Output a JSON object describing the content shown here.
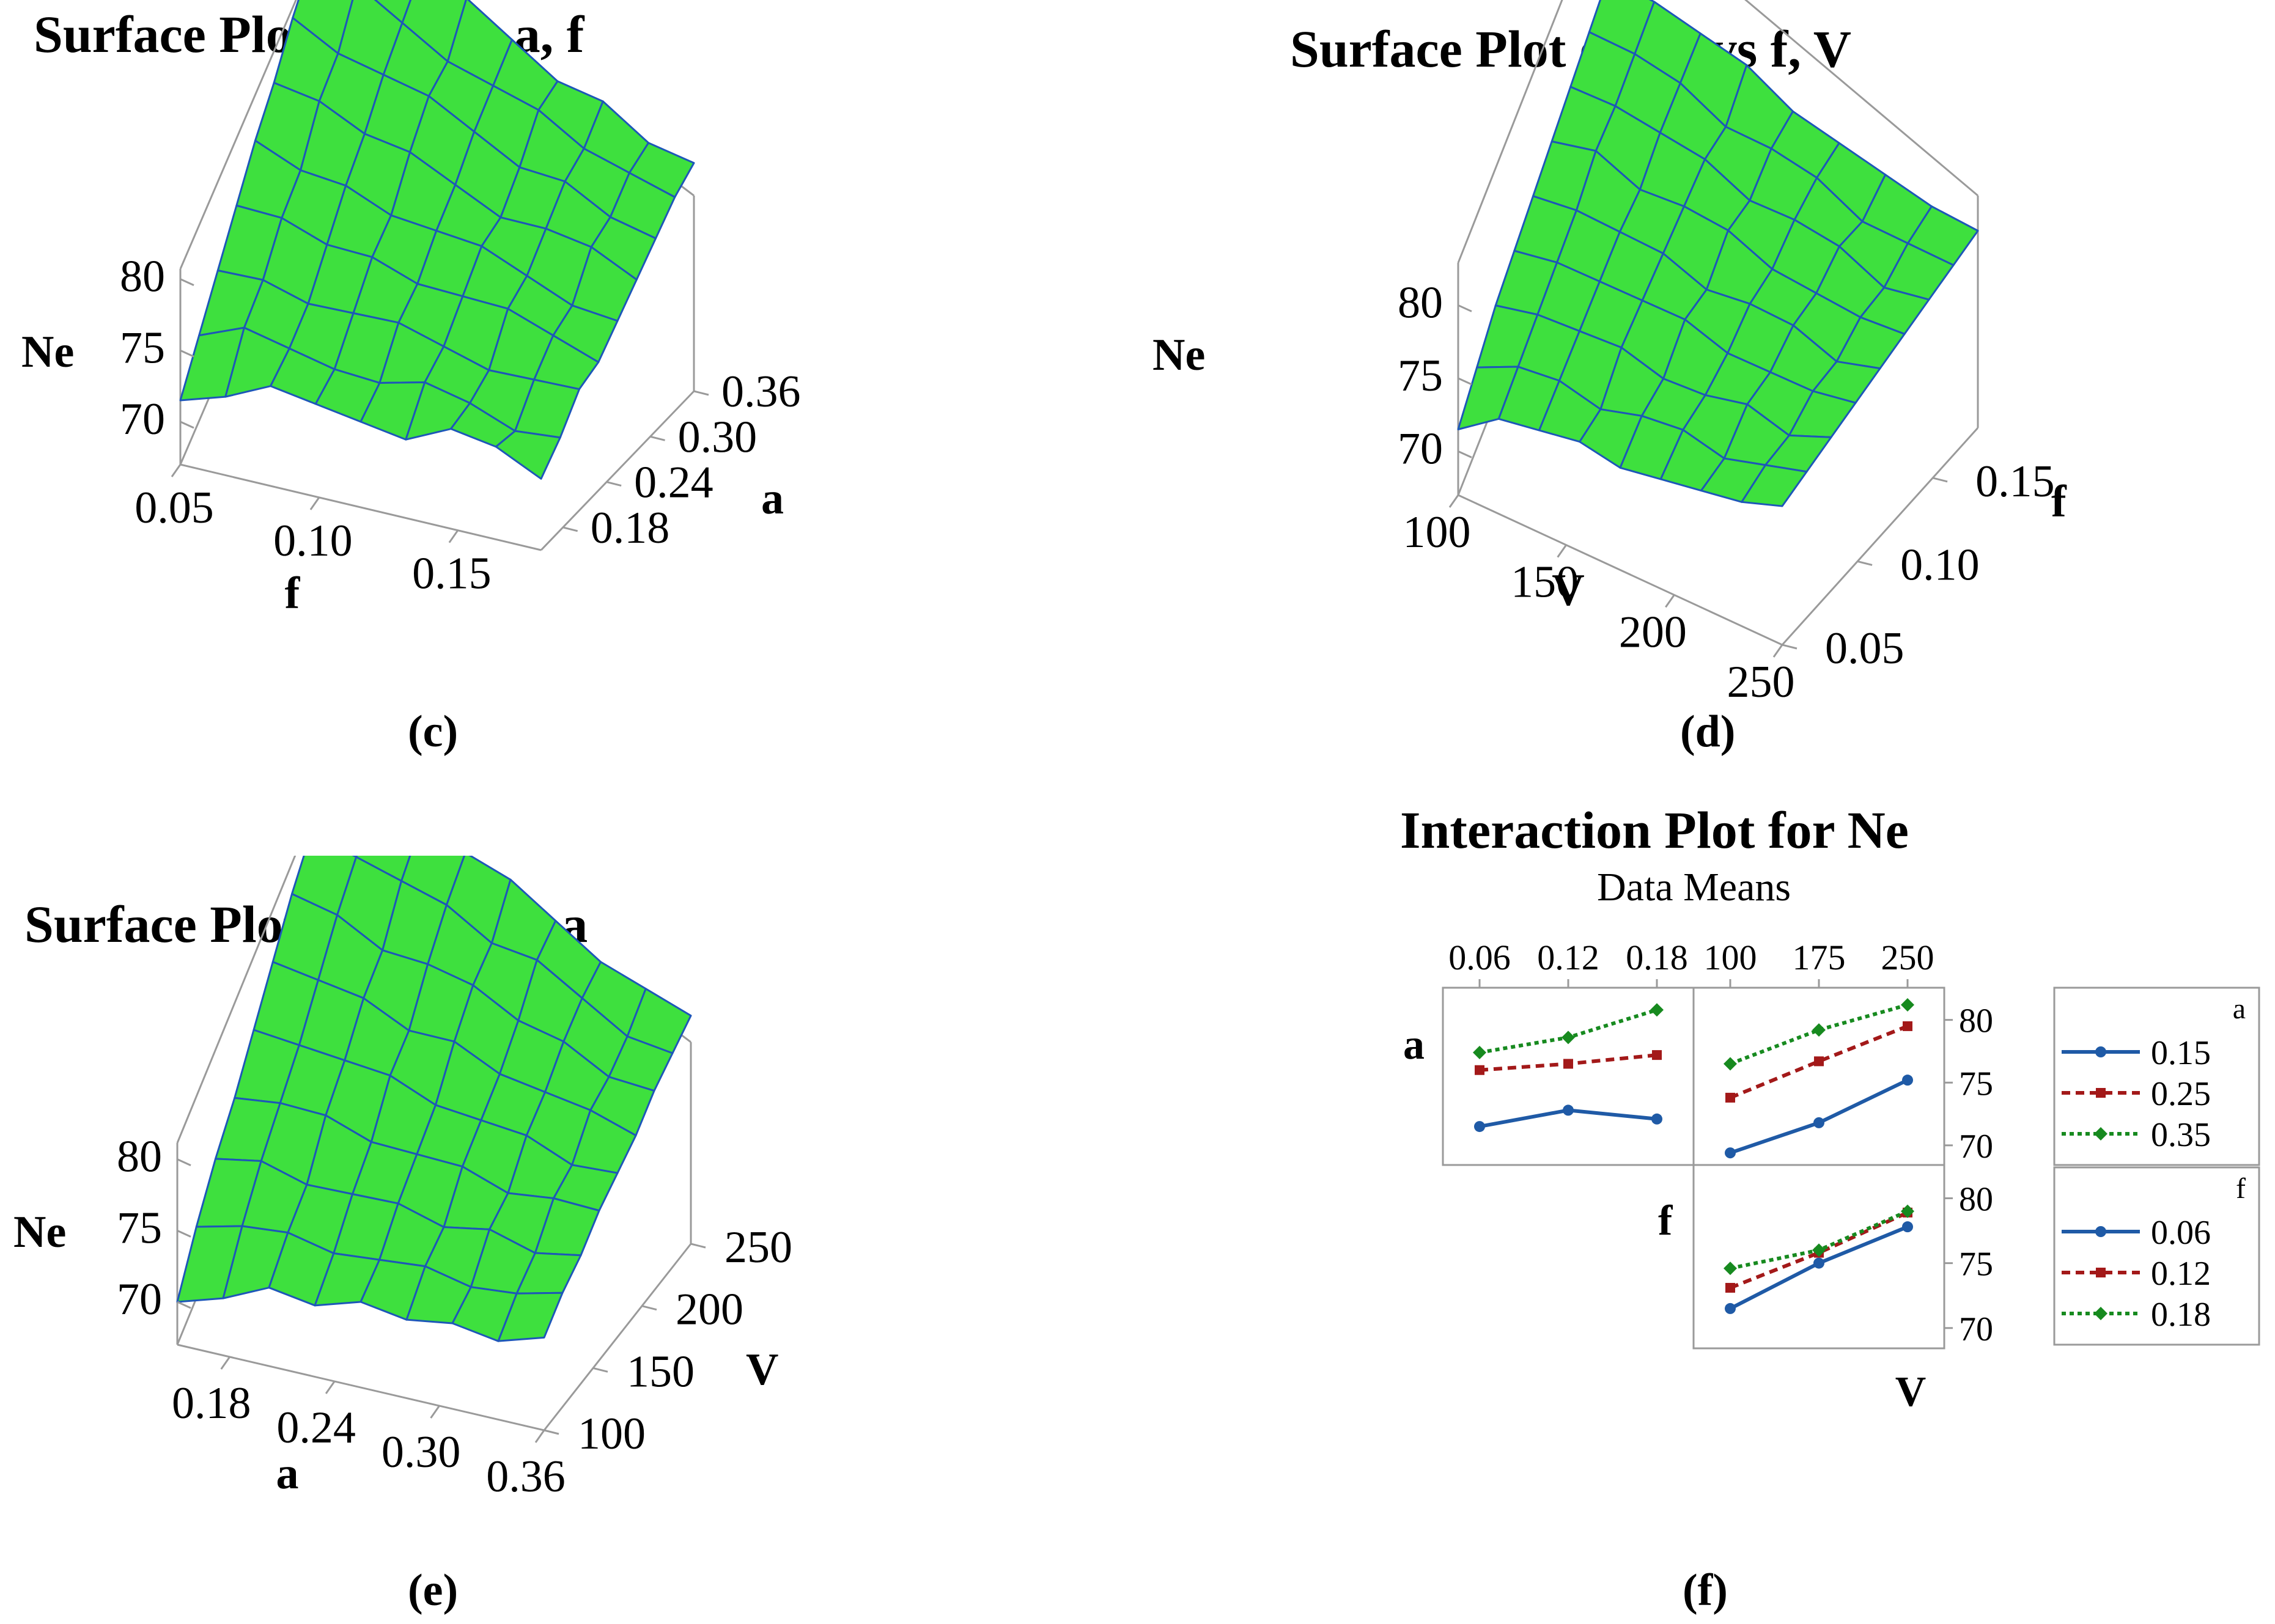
{
  "panels": [
    {
      "id": "c",
      "caption": "(c)"
    },
    {
      "id": "d",
      "caption": "(d)"
    },
    {
      "id": "e",
      "caption": "(e)"
    },
    {
      "id": "f",
      "caption": "(f)"
    }
  ],
  "chart_data": [
    {
      "id": "c",
      "type": "surface",
      "title": "Surface Plot of Ne vs a, f",
      "zlabel": "Ne",
      "xlabel": "f",
      "ylabel": "a",
      "z_ticks": [
        "70",
        "75",
        "80"
      ],
      "x_ticks": [
        "0.05",
        "0.10",
        "0.15"
      ],
      "y_ticks": [
        "0.18",
        "0.24",
        "0.30",
        "0.36"
      ],
      "zlim": [
        67,
        85
      ],
      "xlim": [
        0.05,
        0.18
      ],
      "ylim": [
        0.15,
        0.36
      ],
      "z_grid": [
        [
          71.5,
          72.5,
          74.0,
          73.5,
          73.0,
          72.5,
          74.0,
          73.5,
          72.0
        ],
        [
          73.0,
          74.5,
          74.0,
          73.5,
          73.5,
          74.5,
          74.0,
          73.0,
          73.5
        ],
        [
          74.5,
          75.0,
          74.5,
          75.0,
          75.5,
          75.0,
          74.5,
          75.0,
          75.5
        ],
        [
          76.0,
          76.5,
          76.0,
          76.5,
          76.0,
          76.5,
          77.0,
          76.5,
          76.0
        ],
        [
          77.5,
          77.0,
          77.5,
          77.0,
          77.5,
          78.0,
          77.5,
          77.0,
          77.5
        ],
        [
          78.5,
          79.0,
          78.5,
          79.0,
          78.5,
          78.0,
          79.0,
          79.5,
          79.0
        ],
        [
          80.0,
          79.5,
          80.0,
          80.5,
          80.0,
          79.5,
          80.5,
          80.0,
          80.5
        ],
        [
          81.0,
          81.5,
          81.0,
          80.5,
          81.0,
          81.5,
          81.0,
          81.5,
          82.0
        ],
        [
          82.0,
          82.5,
          82.0,
          82.5,
          82.0,
          81.5,
          82.5,
          82.0,
          83.0
        ]
      ]
    },
    {
      "id": "d",
      "type": "surface",
      "title": "Surface Plot of Ne vs f, V",
      "zlabel": "Ne",
      "xlabel": "V",
      "ylabel": "f",
      "z_ticks": [
        "70",
        "75",
        "80"
      ],
      "x_ticks": [
        "100",
        "150",
        "200",
        "250"
      ],
      "y_ticks": [
        "0.05",
        "0.10",
        "0.15"
      ],
      "zlim": [
        67,
        85
      ],
      "xlim": [
        100,
        250
      ],
      "ylim": [
        0.05,
        0.18
      ],
      "z_grid": [
        [
          71.5,
          73.5,
          74.0,
          74.5,
          74.0,
          74.5,
          75.0,
          75.5,
          76.5
        ],
        [
          72.5,
          74.0,
          74.5,
          74.0,
          75.0,
          75.5,
          75.0,
          76.0,
          77.0
        ],
        [
          73.5,
          74.5,
          75.0,
          75.5,
          75.0,
          75.5,
          76.5,
          76.0,
          77.5
        ],
        [
          74.0,
          75.0,
          75.5,
          76.0,
          76.5,
          76.0,
          76.5,
          77.0,
          78.0
        ],
        [
          74.5,
          75.5,
          76.0,
          76.5,
          76.0,
          77.0,
          77.5,
          77.0,
          78.5
        ],
        [
          75.0,
          76.5,
          76.0,
          77.0,
          77.5,
          77.0,
          77.5,
          78.0,
          79.0
        ],
        [
          75.5,
          76.5,
          77.0,
          77.5,
          77.0,
          78.0,
          78.5,
          78.0,
          79.5
        ],
        [
          76.0,
          77.0,
          77.5,
          77.0,
          78.0,
          78.5,
          78.0,
          79.0,
          80.0
        ],
        [
          76.5,
          77.5,
          78.0,
          78.5,
          78.0,
          78.5,
          79.0,
          79.5,
          80.5
        ]
      ]
    },
    {
      "id": "e",
      "type": "surface",
      "title": "Surface Plot of Ne vs V, a",
      "zlabel": "Ne",
      "xlabel": "a",
      "ylabel": "V",
      "z_ticks": [
        "70",
        "75",
        "80"
      ],
      "x_ticks": [
        "0.18",
        "0.24",
        "0.30",
        "0.36"
      ],
      "y_ticks": [
        "100",
        "150",
        "200",
        "250"
      ],
      "zlim": [
        67,
        85
      ],
      "xlim": [
        0.15,
        0.36
      ],
      "ylim": [
        100,
        250
      ],
      "z_grid": [
        [
          70.0,
          71.0,
          72.5,
          72.0,
          73.0,
          72.5,
          73.0,
          72.5,
          73.5
        ],
        [
          72.0,
          73.0,
          73.5,
          73.0,
          73.5,
          74.0,
          73.5,
          74.0,
          75.0
        ],
        [
          73.5,
          74.5,
          74.0,
          74.5,
          75.0,
          74.5,
          75.5,
          75.0,
          76.0
        ],
        [
          74.5,
          75.5,
          76.0,
          75.5,
          76.0,
          76.5,
          76.0,
          77.0,
          77.5
        ],
        [
          76.0,
          76.5,
          77.0,
          77.5,
          77.0,
          77.5,
          78.0,
          77.5,
          78.5
        ],
        [
          77.5,
          78.0,
          78.5,
          78.0,
          79.0,
          78.5,
          79.0,
          79.5,
          79.5
        ],
        [
          79.0,
          79.5,
          79.0,
          80.0,
          80.5,
          80.0,
          80.5,
          80.0,
          81.0
        ],
        [
          80.0,
          80.5,
          81.0,
          81.5,
          81.0,
          82.0,
          81.5,
          81.0,
          82.0
        ],
        [
          81.0,
          81.5,
          82.0,
          82.5,
          83.0,
          82.5,
          82.0,
          82.5,
          83.0
        ]
      ]
    },
    {
      "id": "f",
      "type": "line",
      "title": "Interaction Plot for Ne",
      "subtitle": "Data Means",
      "row_labels": [
        "a",
        "f"
      ],
      "col_label": "V",
      "top_ticks_f": [
        "0.06",
        "0.12",
        "0.18"
      ],
      "top_ticks_V": [
        "100",
        "175",
        "250"
      ],
      "right_ticks": [
        "70",
        "75",
        "80"
      ],
      "ylim": [
        69,
        82
      ],
      "legends": [
        {
          "title": "a",
          "entries": [
            "0.15",
            "0.25",
            "0.35"
          ]
        },
        {
          "title": "f",
          "entries": [
            "0.06",
            "0.12",
            "0.18"
          ]
        }
      ],
      "colors": [
        "#1f5aa6",
        "#a31919",
        "#178a1f"
      ],
      "a_vs_f": {
        "x": [
          0.06,
          0.12,
          0.18
        ],
        "series": [
          {
            "name": "0.15",
            "values": [
              71.5,
              72.8,
              72.1
            ]
          },
          {
            "name": "0.25",
            "values": [
              76.0,
              76.5,
              77.2
            ]
          },
          {
            "name": "0.35",
            "values": [
              77.4,
              78.6,
              80.8
            ]
          }
        ]
      },
      "a_vs_V": {
        "x": [
          100,
          175,
          250
        ],
        "series": [
          {
            "name": "0.15",
            "values": [
              69.4,
              71.8,
              75.2
            ]
          },
          {
            "name": "0.25",
            "values": [
              73.8,
              76.7,
              79.5
            ]
          },
          {
            "name": "0.35",
            "values": [
              76.5,
              79.2,
              81.2
            ]
          }
        ]
      },
      "f_vs_V": {
        "x": [
          100,
          175,
          250
        ],
        "series": [
          {
            "name": "0.06",
            "values": [
              71.5,
              75.0,
              77.8
            ]
          },
          {
            "name": "0.12",
            "values": [
              73.1,
              75.8,
              78.9
            ]
          },
          {
            "name": "0.18",
            "values": [
              74.6,
              76.0,
              79.0
            ]
          }
        ]
      }
    }
  ]
}
